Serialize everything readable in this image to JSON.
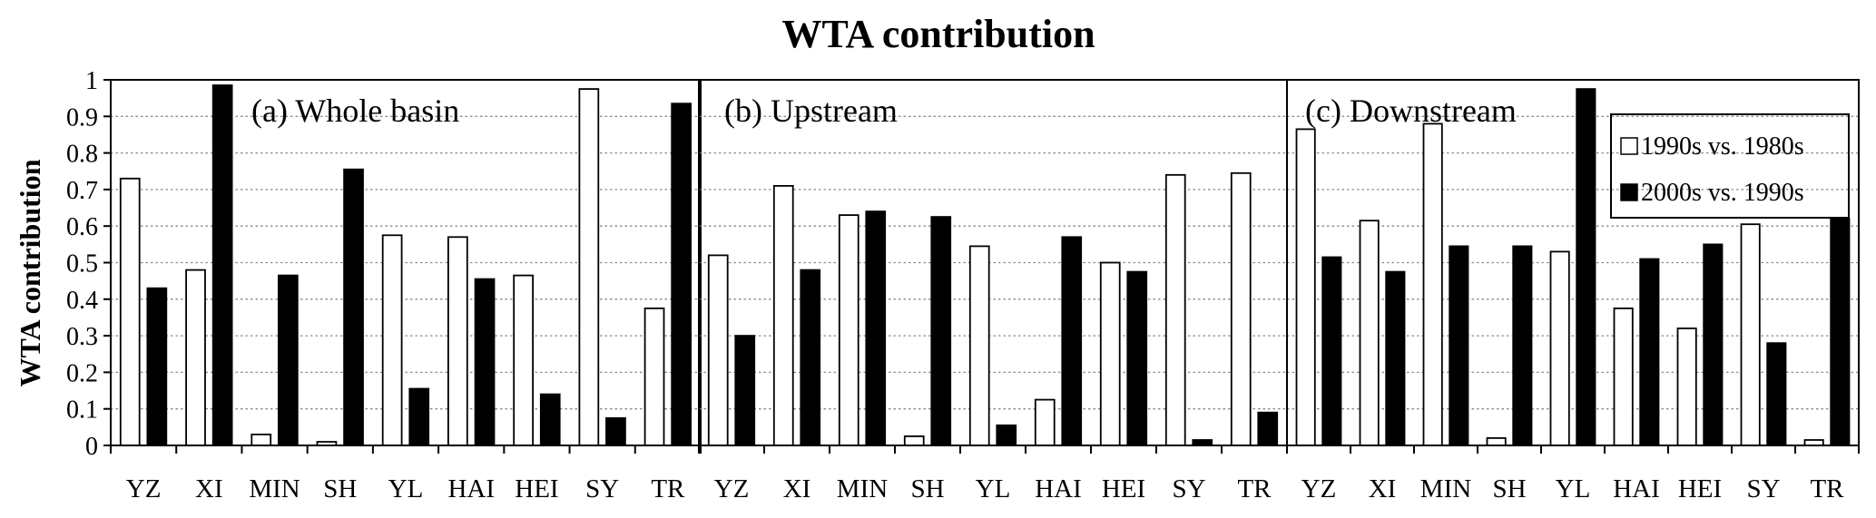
{
  "figure_title": "WTA contribution",
  "y_axis_label": "WTA contribution",
  "legend": [
    {
      "label": "1990s  vs. 1980s",
      "fill": "#ffffff"
    },
    {
      "label": "2000s  vs. 1990s",
      "fill": "#000000"
    }
  ],
  "chart_data": [
    {
      "type": "bar",
      "title": "(a) Whole basin",
      "categories": [
        "YZ",
        "XI",
        "MIN",
        "SH",
        "YL",
        "HAI",
        "HEI",
        "SY",
        "TR"
      ],
      "ylabel": "WTA contribution",
      "ylim": [
        0,
        1
      ],
      "yticks": [
        "0",
        "0.1",
        "0.2",
        "0.3",
        "0.4",
        "0.5",
        "0.6",
        "0.7",
        "0.8",
        "0.9",
        "1"
      ],
      "grid": true,
      "series": [
        {
          "name": "1990s  vs. 1980s",
          "values": [
            0.73,
            0.48,
            0.03,
            0.01,
            0.575,
            0.57,
            0.465,
            0.975,
            0.375
          ]
        },
        {
          "name": "2000s  vs. 1990s",
          "values": [
            0.43,
            0.985,
            0.465,
            0.755,
            0.155,
            0.455,
            0.14,
            0.075,
            0.935
          ]
        }
      ]
    },
    {
      "type": "bar",
      "title": "(b) Upstream",
      "categories": [
        "YZ",
        "XI",
        "MIN",
        "SH",
        "YL",
        "HAI",
        "HEI",
        "SY",
        "TR"
      ],
      "ylim": [
        0,
        1
      ],
      "grid": true,
      "series": [
        {
          "name": "1990s  vs. 1980s",
          "values": [
            0.52,
            0.71,
            0.63,
            0.025,
            0.545,
            0.125,
            0.5,
            0.74,
            0.745
          ]
        },
        {
          "name": "2000s  vs. 1990s",
          "values": [
            0.3,
            0.48,
            0.64,
            0.625,
            0.055,
            0.57,
            0.475,
            0.015,
            0.09
          ]
        }
      ]
    },
    {
      "type": "bar",
      "title": "(c) Downstream",
      "categories": [
        "YZ",
        "XI",
        "MIN",
        "SH",
        "YL",
        "HAI",
        "HEI",
        "SY",
        "TR"
      ],
      "ylim": [
        0,
        1
      ],
      "grid": true,
      "legend_position": "top-right",
      "series": [
        {
          "name": "1990s  vs. 1980s",
          "values": [
            0.865,
            0.615,
            0.88,
            0.02,
            0.53,
            0.375,
            0.32,
            0.605,
            0.015
          ]
        },
        {
          "name": "2000s  vs. 1990s",
          "values": [
            0.515,
            0.475,
            0.545,
            0.545,
            0.975,
            0.51,
            0.55,
            0.28,
            0.62
          ]
        }
      ]
    }
  ]
}
